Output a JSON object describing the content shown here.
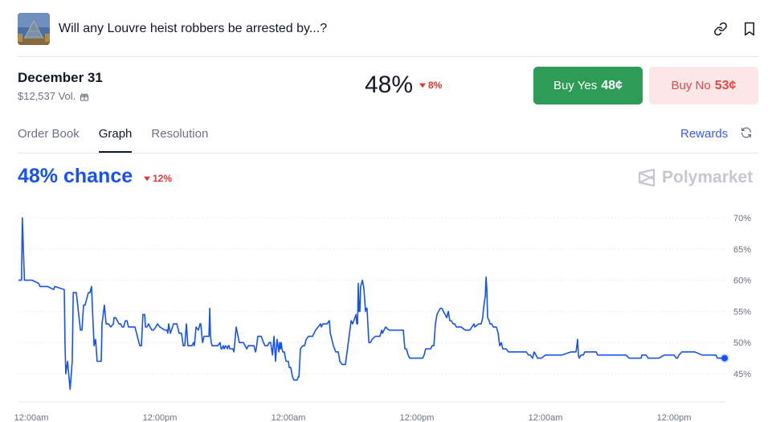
{
  "header": {
    "title": "Will any Louvre heist robbers be arrested by...?",
    "icons": [
      "link-icon",
      "bookmark-icon"
    ]
  },
  "market": {
    "date": "December 31",
    "volume": "$12,537 Vol.",
    "probability": "48%",
    "change": "8%",
    "change_direction": "down",
    "buy_yes_label": "Buy Yes",
    "buy_yes_price": "48¢",
    "buy_no_label": "Buy No",
    "buy_no_price": "53¢"
  },
  "tabs": [
    {
      "label": "Order Book",
      "active": false
    },
    {
      "label": "Graph",
      "active": true
    },
    {
      "label": "Resolution",
      "active": false
    }
  ],
  "rewards_label": "Rewards",
  "graph": {
    "chance_label": "48% chance",
    "change": "12%",
    "brand": "Polymarket"
  },
  "colors": {
    "line": "#1652f0",
    "yes": "#2d9c56",
    "no_bg": "#fbe7e7",
    "no_text": "#e34848",
    "down": "#e23636"
  },
  "chart_data": {
    "type": "line",
    "y_ticks": [
      70,
      65,
      60,
      55,
      50,
      45
    ],
    "y_tick_labels": [
      "70%",
      "65%",
      "60%",
      "55%",
      "50%",
      "45%"
    ],
    "ylim": [
      41,
      72
    ],
    "x_ticks": [
      0.5,
      1,
      1.5,
      2,
      2.5,
      3
    ],
    "x_tick_labels": [
      "12:00am",
      "12:00pm",
      "12:00am",
      "12:00pm",
      "12:00am",
      "12:00pm"
    ],
    "xlim": [
      0.45,
      3.2
    ],
    "grid": true,
    "series": [
      {
        "x": [
          0.45,
          0.462,
          0.465,
          0.473,
          0.484,
          0.503,
          0.528,
          0.534,
          0.563,
          0.587,
          0.591,
          0.628,
          0.631,
          0.634,
          0.641,
          0.651,
          0.659,
          0.663,
          0.669,
          0.675,
          0.691,
          0.697,
          0.703,
          0.709,
          0.722,
          0.728,
          0.734,
          0.744,
          0.75,
          0.756,
          0.772,
          0.775,
          0.784,
          0.791,
          0.8,
          0.809,
          0.819,
          0.822,
          0.828,
          0.841,
          0.847,
          0.853,
          0.859,
          0.866,
          0.872,
          0.878,
          0.881,
          0.894,
          0.903,
          0.922,
          0.928,
          0.934,
          0.941,
          0.944,
          0.95,
          0.956,
          0.962,
          0.969,
          0.975,
          0.984,
          0.991,
          1.0,
          1.019,
          1.028,
          1.031,
          1.034,
          1.041,
          1.053,
          1.059,
          1.066,
          1.075,
          1.084,
          1.091,
          1.097,
          1.103,
          1.109,
          1.116,
          1.122,
          1.125,
          1.131,
          1.134,
          1.141,
          1.15,
          1.156,
          1.159,
          1.166,
          1.172,
          1.188,
          1.191,
          1.194,
          1.197,
          1.2,
          1.203,
          1.216,
          1.225,
          1.234,
          1.238,
          1.241,
          1.247,
          1.25,
          1.256,
          1.263,
          1.266,
          1.269,
          1.272,
          1.284,
          1.288,
          1.297,
          1.309,
          1.325,
          1.338,
          1.344,
          1.353,
          1.366,
          1.372,
          1.375,
          1.381,
          1.394,
          1.403,
          1.409,
          1.419,
          1.425,
          1.431,
          1.438,
          1.444,
          1.45,
          1.456,
          1.463,
          1.466,
          1.469,
          1.472,
          1.475,
          1.478,
          1.481,
          1.484,
          1.491,
          1.497,
          1.5,
          1.503,
          1.509,
          1.516,
          1.522,
          1.525,
          1.528,
          1.534,
          1.538,
          1.541,
          1.547,
          1.556,
          1.563,
          1.569,
          1.578,
          1.594,
          1.606,
          1.625,
          1.628,
          1.634,
          1.65,
          1.659,
          1.663,
          1.675,
          1.684,
          1.688,
          1.694,
          1.7,
          1.709,
          1.722,
          1.744,
          1.75,
          1.763,
          1.766,
          1.769,
          1.772,
          1.775,
          1.778,
          1.781,
          1.788,
          1.794,
          1.8,
          1.803,
          1.806,
          1.809,
          1.813,
          1.819,
          1.825,
          1.838,
          1.856,
          1.863,
          1.866,
          1.878,
          1.891,
          1.9,
          1.909,
          1.913,
          1.919,
          1.925,
          1.928,
          1.941,
          1.947,
          1.953,
          1.959,
          1.966,
          1.972,
          1.978,
          1.991,
          2.0,
          2.016,
          2.022,
          2.028,
          2.034,
          2.047,
          2.053,
          2.059,
          2.066,
          2.072,
          2.078,
          2.084,
          2.091,
          2.097,
          2.116,
          2.122,
          2.128,
          2.134,
          2.141,
          2.147,
          2.153,
          2.159,
          2.166,
          2.172,
          2.188,
          2.206,
          2.222,
          2.225,
          2.241,
          2.25,
          2.256,
          2.259,
          2.266,
          2.269,
          2.272,
          2.275,
          2.281,
          2.284,
          2.291,
          2.297,
          2.303,
          2.309,
          2.316,
          2.322,
          2.328,
          2.334,
          2.341,
          2.347,
          2.356,
          2.375,
          2.384,
          2.4,
          2.409,
          2.425,
          2.434,
          2.441,
          2.45,
          2.456,
          2.463,
          2.469,
          2.484,
          2.5,
          2.509,
          2.522,
          2.525,
          2.528,
          2.541,
          2.556,
          2.563,
          2.6,
          2.619,
          2.625,
          2.628,
          2.631,
          2.638,
          2.647,
          2.653,
          2.675,
          2.697,
          2.703,
          2.719,
          2.728,
          2.734,
          2.741,
          2.75,
          2.766,
          2.788,
          2.797,
          2.813,
          2.825,
          2.85,
          2.872,
          2.875,
          2.878,
          2.891,
          2.9,
          2.906,
          2.931,
          2.941,
          2.963,
          2.978,
          2.981,
          2.984,
          2.994,
          3.0,
          3.009,
          3.013,
          3.019,
          3.031,
          3.038,
          3.05,
          3.075,
          3.081,
          3.109,
          3.134,
          3.163,
          3.169,
          3.175,
          3.191,
          3.197
        ],
        "y": [
          60,
          60,
          70,
          60,
          60,
          60,
          59.5,
          59,
          59,
          58.5,
          59,
          58.5,
          50,
          45,
          47,
          42.5,
          47,
          58,
          58,
          58,
          52,
          52,
          56,
          56,
          58,
          58,
          59,
          49.5,
          50.5,
          47,
          47,
          53,
          56,
          53,
          53,
          52.5,
          53,
          54,
          54,
          53,
          53,
          52.5,
          52.5,
          53.5,
          53.5,
          52.5,
          52.5,
          52.5,
          52.5,
          49.5,
          49.5,
          54.5,
          54.5,
          52.5,
          52.5,
          53,
          52.5,
          52,
          52,
          52.5,
          53,
          52.5,
          52,
          52,
          51.5,
          53,
          51.5,
          53,
          53,
          53,
          51.5,
          51.5,
          49.5,
          49.5,
          53,
          49.5,
          49.5,
          49.5,
          49.5,
          50,
          49.5,
          52.5,
          52,
          53,
          53,
          50,
          51,
          51,
          51,
          55.5,
          51,
          50,
          49.5,
          49.5,
          49.5,
          50,
          49,
          49,
          49.5,
          49,
          49.5,
          49,
          49.5,
          49.5,
          49,
          49,
          48.5,
          52.5,
          50,
          50,
          49,
          49.5,
          49.5,
          49.5,
          48.5,
          49,
          51,
          51,
          50,
          49.5,
          49.5,
          50,
          50,
          48,
          51,
          47,
          50.5,
          48.5,
          50,
          49,
          50,
          49,
          48.5,
          48.5,
          48.5,
          47,
          47,
          47,
          46,
          46,
          44.5,
          44,
          44,
          44,
          44,
          44.5,
          44.5,
          49,
          49.5,
          49.5,
          50.5,
          51,
          51,
          52,
          53,
          52.5,
          53,
          53,
          53.5,
          51.5,
          49.5,
          48.5,
          48.5,
          48.5,
          47,
          46.5,
          46.5,
          53.5,
          53,
          54.5,
          53,
          53,
          59.5,
          55,
          55,
          59,
          60,
          58.5,
          55,
          55.5,
          55.5,
          53,
          50,
          50,
          50.5,
          51,
          51,
          52,
          51.5,
          52.5,
          52,
          52,
          52,
          52,
          52,
          52,
          52,
          52,
          52,
          49,
          49,
          48,
          47.5,
          47.5,
          47.5,
          47.5,
          47.5,
          47.5,
          48,
          49,
          49,
          49,
          49.5,
          49.5,
          53,
          54.5,
          55,
          55.5,
          55.5,
          54,
          55,
          53.5,
          53.5,
          53,
          53,
          52.5,
          52.5,
          52.5,
          52.5,
          52,
          52,
          53,
          52.5,
          53,
          53,
          54,
          55.5,
          57.5,
          60.5,
          58.5,
          54,
          53.5,
          53,
          53,
          52.5,
          52.5,
          52.5,
          51.5,
          49.5,
          50,
          49,
          49,
          49,
          48.5,
          48.5,
          48.5,
          48.5,
          48.5,
          48.5,
          48,
          48,
          47.5,
          48.5,
          48,
          47.5,
          47.5,
          48,
          48,
          48,
          48,
          48,
          48,
          48,
          48,
          48.5,
          48.5,
          50.5,
          48,
          47.5,
          48,
          48,
          48.5,
          48.5,
          48.5,
          48,
          48,
          48,
          48,
          48,
          48,
          48,
          48,
          48,
          48,
          47.5,
          47.5,
          47.5,
          48,
          48,
          48,
          47.5,
          47.5,
          47.5,
          47.5,
          48,
          48,
          48,
          48,
          48,
          48,
          47.5,
          47.5,
          48,
          48.5,
          48.5,
          48.5,
          48.5,
          48.5,
          48,
          48,
          48,
          47.5,
          47.5,
          47.5,
          47.5
        ]
      }
    ],
    "last_value": 47.5
  }
}
